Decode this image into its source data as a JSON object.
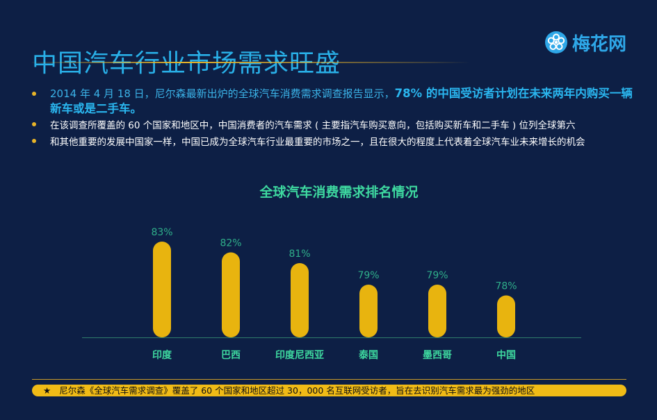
{
  "title": "中国汽车行业市场需求旺盛",
  "logo": {
    "text": "梅花网",
    "icon": "plum-blossom-logo-icon"
  },
  "bullets": [
    {
      "text": "2014 年 4 月 18 日，尼尔森最新出炉的全球汽车消费需求调查报告显示，",
      "highlight": "78% 的中国受访者计划在未来两年内购买一辆新车或是二手车。"
    },
    {
      "text": "在该调查所覆盖的 60 个国家和地区中，中国消费者的汽车需求 ( 主要指汽车购买意向，包括购买新车和二手车 ) 位列全球第六"
    },
    {
      "text": "和其他重要的发展中国家一样，中国已成为全球汽车行业最重要的市场之一，且在很大的程度上代表着全球汽车业未来增长的机会"
    }
  ],
  "chart_data": {
    "type": "bar",
    "title": "全球汽车消费需求排名情况",
    "categories": [
      "印度",
      "巴西",
      "印度尼西亚",
      "泰国",
      "墨西哥",
      "中国"
    ],
    "values": [
      83,
      82,
      81,
      79,
      79,
      78
    ],
    "value_labels": [
      "83%",
      "82%",
      "81%",
      "79%",
      "79%",
      "78%"
    ],
    "bar_color": "#e8b40f",
    "axis_color": "#2f7d6a",
    "label_color": "#3ed9a0",
    "grid": false
  },
  "footnote": {
    "star": "★",
    "text": "尼尔森《全球汽车需求调查》覆盖了 60 个国家和地区超过 30，000 名互联网受访者，旨在去识别汽车需求最为强劲的地区"
  }
}
